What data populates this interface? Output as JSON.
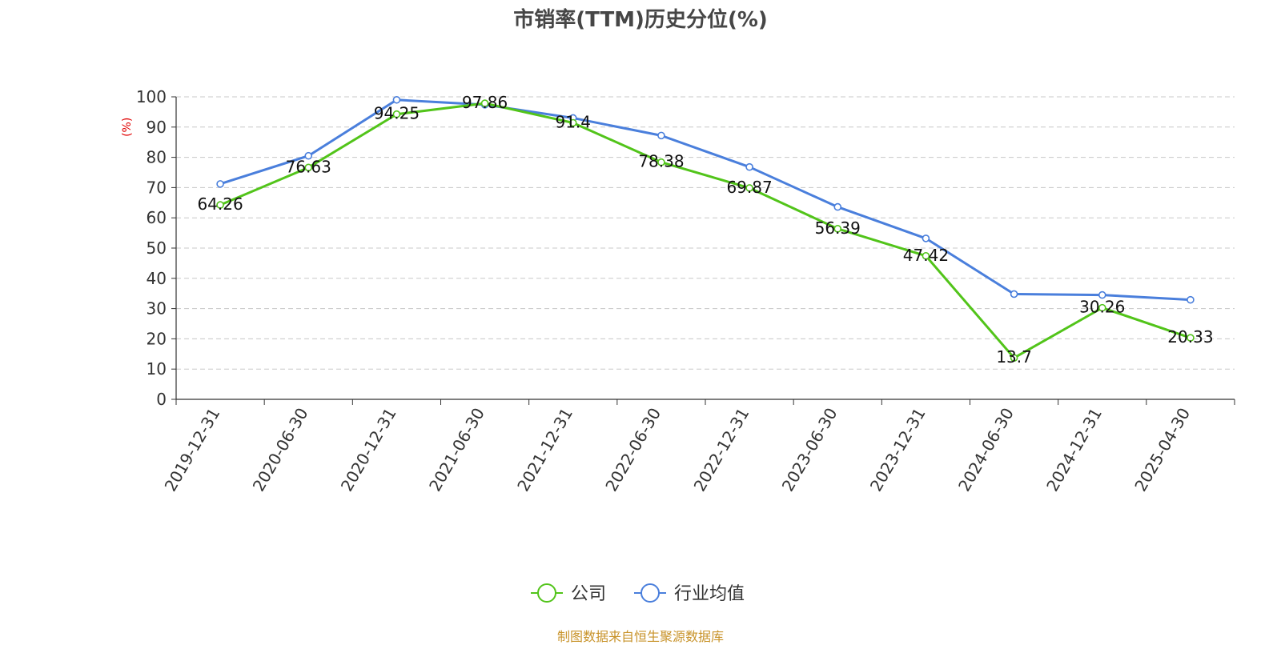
{
  "chart_data": {
    "type": "line",
    "title": "市销率(TTM)历史分位(%)",
    "ylabel": "(%)",
    "xlabel": "",
    "categories": [
      "2019-12-31",
      "2020-06-30",
      "2020-12-31",
      "2021-06-30",
      "2021-12-31",
      "2022-06-30",
      "2022-12-31",
      "2023-06-30",
      "2023-12-31",
      "2024-06-30",
      "2024-12-31",
      "2025-04-30"
    ],
    "ylim": [
      0,
      100
    ],
    "yticks": [
      0,
      10,
      20,
      30,
      40,
      50,
      60,
      70,
      80,
      90,
      100
    ],
    "grid": true,
    "legend_position": "bottom-center",
    "series": [
      {
        "name": "公司",
        "color": "#52c41a",
        "values": [
          64.26,
          76.63,
          94.25,
          97.86,
          91.4,
          78.38,
          69.87,
          56.39,
          47.42,
          13.7,
          30.26,
          20.33
        ],
        "labels": [
          "64.26",
          "76.63",
          "94.25",
          "97.86",
          "91.4",
          "78.38",
          "69.87",
          "56.39",
          "47.42",
          "13.7",
          "30.26",
          "20.33"
        ]
      },
      {
        "name": "行业均值",
        "color": "#4a7fdc",
        "values": [
          71.2,
          80.5,
          99.0,
          97.4,
          93.0,
          87.2,
          76.8,
          63.6,
          53.2,
          34.8,
          34.5,
          32.9
        ]
      }
    ]
  },
  "footer": {
    "source": "制图数据来自恒生聚源数据库"
  }
}
